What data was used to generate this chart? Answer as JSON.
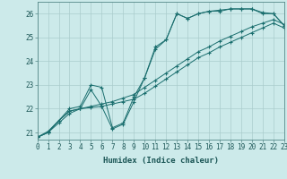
{
  "title": "",
  "xlabel": "Humidex (Indice chaleur)",
  "bg_color": "#cceaea",
  "grid_color": "#aacccc",
  "line_color": "#1a6e6e",
  "series": [
    {
      "x": [
        0,
        1,
        2,
        3,
        4,
        5,
        6,
        7,
        8,
        9,
        10,
        11,
        12,
        13,
        14,
        15,
        16,
        17,
        18,
        19,
        20,
        21,
        22,
        23
      ],
      "y": [
        20.8,
        21.0,
        21.5,
        22.0,
        22.1,
        23.0,
        22.9,
        21.2,
        21.4,
        22.5,
        23.3,
        24.6,
        24.9,
        26.0,
        25.8,
        26.0,
        26.1,
        26.1,
        26.2,
        26.2,
        26.2,
        26.0,
        26.0,
        25.5
      ]
    },
    {
      "x": [
        0,
        1,
        2,
        3,
        4,
        5,
        6,
        7,
        8,
        9,
        10,
        11,
        12,
        13,
        14,
        15,
        16,
        17,
        18,
        19,
        20,
        21,
        22,
        23
      ],
      "y": [
        20.8,
        21.0,
        21.5,
        21.9,
        22.0,
        22.1,
        22.2,
        22.3,
        22.45,
        22.6,
        22.9,
        23.2,
        23.5,
        23.8,
        24.1,
        24.4,
        24.6,
        24.85,
        25.05,
        25.25,
        25.45,
        25.6,
        25.75,
        25.55
      ]
    },
    {
      "x": [
        0,
        1,
        2,
        3,
        4,
        5,
        6,
        7,
        8,
        9,
        10,
        11,
        12,
        13,
        14,
        15,
        16,
        17,
        18,
        19,
        20,
        21,
        22,
        23
      ],
      "y": [
        20.8,
        21.0,
        21.4,
        21.8,
        22.0,
        22.05,
        22.1,
        22.2,
        22.3,
        22.4,
        22.65,
        22.95,
        23.25,
        23.55,
        23.85,
        24.15,
        24.35,
        24.6,
        24.8,
        25.0,
        25.2,
        25.4,
        25.6,
        25.4
      ]
    },
    {
      "x": [
        0,
        1,
        2,
        3,
        4,
        5,
        6,
        7,
        8,
        9,
        10,
        11,
        12,
        13,
        14,
        15,
        16,
        17,
        18,
        19,
        20,
        21,
        22,
        23
      ],
      "y": [
        20.8,
        21.05,
        21.5,
        21.9,
        22.0,
        22.8,
        22.1,
        21.15,
        21.35,
        22.3,
        23.3,
        24.5,
        24.9,
        26.0,
        25.8,
        26.0,
        26.1,
        26.15,
        26.2,
        26.2,
        26.2,
        26.05,
        26.0,
        25.5
      ]
    }
  ],
  "xlim": [
    0,
    23
  ],
  "ylim": [
    20.7,
    26.5
  ],
  "yticks": [
    21,
    22,
    23,
    24,
    25,
    26
  ],
  "xticks": [
    0,
    1,
    2,
    3,
    4,
    5,
    6,
    7,
    8,
    9,
    10,
    11,
    12,
    13,
    14,
    15,
    16,
    17,
    18,
    19,
    20,
    21,
    22,
    23
  ],
  "tick_fontsize": 5.5,
  "label_fontsize": 6.5
}
